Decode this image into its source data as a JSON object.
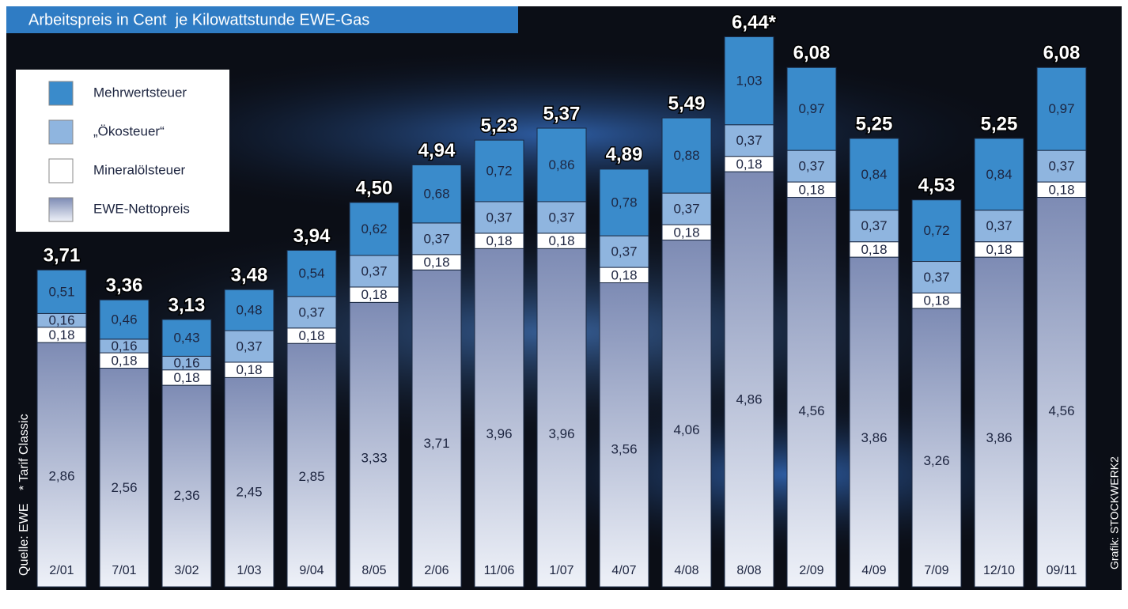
{
  "chart_data": {
    "type": "stacked-bar",
    "title": "Arbeitspreis in Cent  je Kilowattstunde EWE-Gas",
    "source": "Quelle: EWE",
    "note": "* Tarif Classic",
    "credit": "Grafik: STOCKWERK2",
    "categories": [
      "2/01",
      "7/01",
      "3/02",
      "1/03",
      "9/04",
      "8/05",
      "2/06",
      "11/06",
      "1/07",
      "4/07",
      "4/08",
      "8/08",
      "2/09",
      "4/09",
      "7/09",
      "12/10",
      "09/11"
    ],
    "series": [
      {
        "name": "EWE-Nettopreis",
        "color": "#7d8bb4",
        "values": [
          2.86,
          2.56,
          2.36,
          2.45,
          2.85,
          3.33,
          3.71,
          3.96,
          3.96,
          3.56,
          4.06,
          4.86,
          4.56,
          3.86,
          3.26,
          3.86,
          4.56
        ],
        "value_labels": [
          "2,86",
          "2,56",
          "2,36",
          "2,45",
          "2,85",
          "3,33",
          "3,71",
          "3,96",
          "3,96",
          "3,56",
          "4,06",
          "4,86",
          "4,56",
          "3,86",
          "3,26",
          "3,86",
          "4,56"
        ]
      },
      {
        "name": "Mineralölsteuer",
        "color": "#ffffff",
        "values": [
          0.18,
          0.18,
          0.18,
          0.18,
          0.18,
          0.18,
          0.18,
          0.18,
          0.18,
          0.18,
          0.18,
          0.18,
          0.18,
          0.18,
          0.18,
          0.18,
          0.18
        ],
        "value_labels": [
          "0,18",
          "0,18",
          "0,18",
          "0,18",
          "0,18",
          "0,18",
          "0,18",
          "0,18",
          "0,18",
          "0,18",
          "0,18",
          "0,18",
          "0,18",
          "0,18",
          "0,18",
          "0,18",
          "0,18"
        ]
      },
      {
        "name": "„Ökosteuer“",
        "color": "#8fb5df",
        "values": [
          0.16,
          0.16,
          0.16,
          0.37,
          0.37,
          0.37,
          0.37,
          0.37,
          0.37,
          0.37,
          0.37,
          0.37,
          0.37,
          0.37,
          0.37,
          0.37,
          0.37
        ],
        "value_labels": [
          "0,16",
          "0,16",
          "0,16",
          "0,37",
          "0,37",
          "0,37",
          "0,37",
          "0,37",
          "0,37",
          "0,37",
          "0,37",
          "0,37",
          "0,37",
          "0,37",
          "0,37",
          "0,37",
          "0,37"
        ]
      },
      {
        "name": "Mehrwertsteuer",
        "color": "#3a8bcb",
        "values": [
          0.51,
          0.46,
          0.43,
          0.48,
          0.54,
          0.62,
          0.68,
          0.72,
          0.86,
          0.78,
          0.88,
          1.03,
          0.97,
          0.84,
          0.72,
          0.84,
          0.97
        ],
        "value_labels": [
          "0,51",
          "0,46",
          "0,43",
          "0,48",
          "0,54",
          "0,62",
          "0,68",
          "0,72",
          "0,86",
          "0,78",
          "0,88",
          "1,03",
          "0,97",
          "0,84",
          "0,72",
          "0,84",
          "0,97"
        ]
      }
    ],
    "totals": {
      "values": [
        3.71,
        3.36,
        3.13,
        3.48,
        3.94,
        4.5,
        4.94,
        5.23,
        5.37,
        4.89,
        5.49,
        6.44,
        6.08,
        5.25,
        4.53,
        5.25,
        6.08
      ],
      "value_labels": [
        "3,71",
        "3,36",
        "3,13",
        "3,48",
        "3,94",
        "4,50",
        "4,94",
        "5,23",
        "5,37",
        "4,89",
        "5,49",
        "6,44*",
        "6,08",
        "5,25",
        "4,53",
        "5,25",
        "6,08"
      ]
    }
  }
}
